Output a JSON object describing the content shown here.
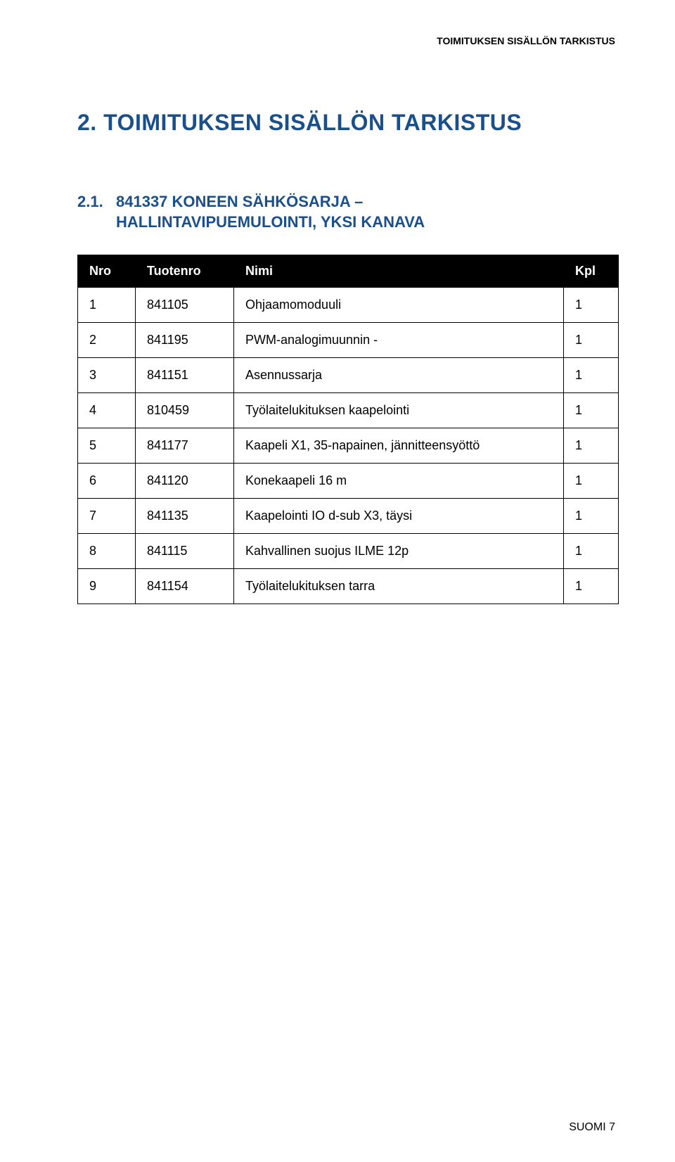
{
  "header": {
    "running_title": "TOIMITUKSEN SISÄLLÖN TARKISTUS"
  },
  "title": {
    "number": "2.",
    "text": "TOIMITUKSEN SISÄLLÖN TARKISTUS",
    "color": "#1b4f8a"
  },
  "subtitle": {
    "number": "2.1.",
    "line1": "841337 KONEEN SÄHKÖSARJA –",
    "line2": "HALLINTAVIPUEMULOINTI, YKSI KANAVA",
    "color": "#1b4f8a"
  },
  "table": {
    "header_bg": "#000000",
    "header_fg": "#ffffff",
    "border_color": "#000000",
    "columns": [
      "Nro",
      "Tuotenro",
      "Nimi",
      "Kpl"
    ],
    "rows": [
      [
        "1",
        "841105",
        "Ohjaamomoduuli",
        "1"
      ],
      [
        "2",
        "841195",
        "PWM-analogimuunnin -",
        "1"
      ],
      [
        "3",
        "841151",
        "Asennussarja",
        "1"
      ],
      [
        "4",
        "810459",
        "Työlaitelukituksen kaapelointi",
        "1"
      ],
      [
        "5",
        "841177",
        "Kaapeli X1, 35-napainen, jännitteensyöttö",
        "1"
      ],
      [
        "6",
        "841120",
        "Konekaapeli 16 m",
        "1"
      ],
      [
        "7",
        "841135",
        "Kaapelointi IO d-sub X3, täysi",
        "1"
      ],
      [
        "8",
        "841115",
        "Kahvallinen suojus ILME 12p",
        "1"
      ],
      [
        "9",
        "841154",
        "Työlaitelukituksen tarra",
        "1"
      ]
    ]
  },
  "footer": {
    "text": "SUOMI 7"
  }
}
